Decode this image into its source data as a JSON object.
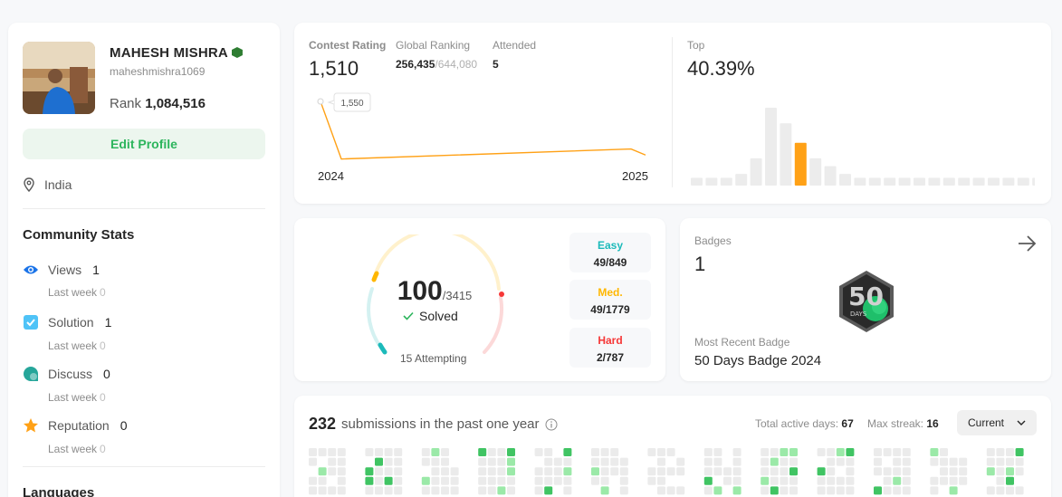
{
  "profile": {
    "name": "MAHESH MISHRA",
    "handle": "maheshmishra1069",
    "rank_label": "Rank",
    "rank_value": "1,084,516",
    "edit_label": "Edit Profile",
    "location": "India"
  },
  "community": {
    "title": "Community Stats",
    "items": [
      {
        "label": "Views",
        "value": "1",
        "sub_label": "Last week",
        "sub_value": "0",
        "icon": "eye-icon",
        "color": "#1a73e8"
      },
      {
        "label": "Solution",
        "value": "1",
        "sub_label": "Last week",
        "sub_value": "0",
        "icon": "checkbox-icon",
        "color": "#4fc3f7"
      },
      {
        "label": "Discuss",
        "value": "0",
        "sub_label": "Last week",
        "sub_value": "0",
        "icon": "discuss-icon",
        "color": "#26a69a"
      },
      {
        "label": "Reputation",
        "value": "0",
        "sub_label": "Last week",
        "sub_value": "0",
        "icon": "star-icon",
        "color": "#ffa116"
      }
    ]
  },
  "languages_title": "Languages",
  "contest": {
    "rating_label": "Contest Rating",
    "rating_value": "1,510",
    "global_label": "Global Ranking",
    "global_value": "256,435",
    "global_total": "/644,080",
    "attended_label": "Attended",
    "attended_value": "5",
    "top_label": "Top",
    "top_value": "40.39%",
    "tooltip": "1,550",
    "year_start": "2024",
    "year_end": "2025",
    "line_color": "#ffa116"
  },
  "chart_data": [
    {
      "type": "line",
      "title": "Contest Rating",
      "x": [
        "2024",
        "",
        "2025"
      ],
      "values": [
        1550,
        1435,
        1455
      ],
      "annotations": [
        "1,550"
      ]
    },
    {
      "type": "bar",
      "title": "Top",
      "values": [
        2,
        2,
        2,
        3,
        7,
        20,
        16,
        11,
        7,
        5,
        3,
        2,
        2,
        2,
        2,
        2,
        2,
        2,
        2,
        2,
        2,
        2,
        2,
        2
      ],
      "highlight_index": 7,
      "highlight_color": "#ffa116"
    }
  ],
  "solved": {
    "count": "100",
    "total": "/3415",
    "solved_label": "Solved",
    "attempting": "15 Attempting",
    "difficulties": [
      {
        "label": "Easy",
        "value": "49/849",
        "color": "#1cbaba"
      },
      {
        "label": "Med.",
        "value": "49/1779",
        "color": "#ffb700"
      },
      {
        "label": "Hard",
        "value": "2/787",
        "color": "#f63737"
      }
    ]
  },
  "badges": {
    "label": "Badges",
    "count": "1",
    "recent_label": "Most Recent Badge",
    "recent_name": "50 Days Badge 2024",
    "badge_text_num": "50",
    "badge_text_days": "DAYS"
  },
  "submissions": {
    "count": "232",
    "text": "submissions in the past one year",
    "active_label": "Total active days:",
    "active_value": "67",
    "streak_label": "Max streak:",
    "streak_value": "16",
    "dropdown_value": "Current"
  }
}
